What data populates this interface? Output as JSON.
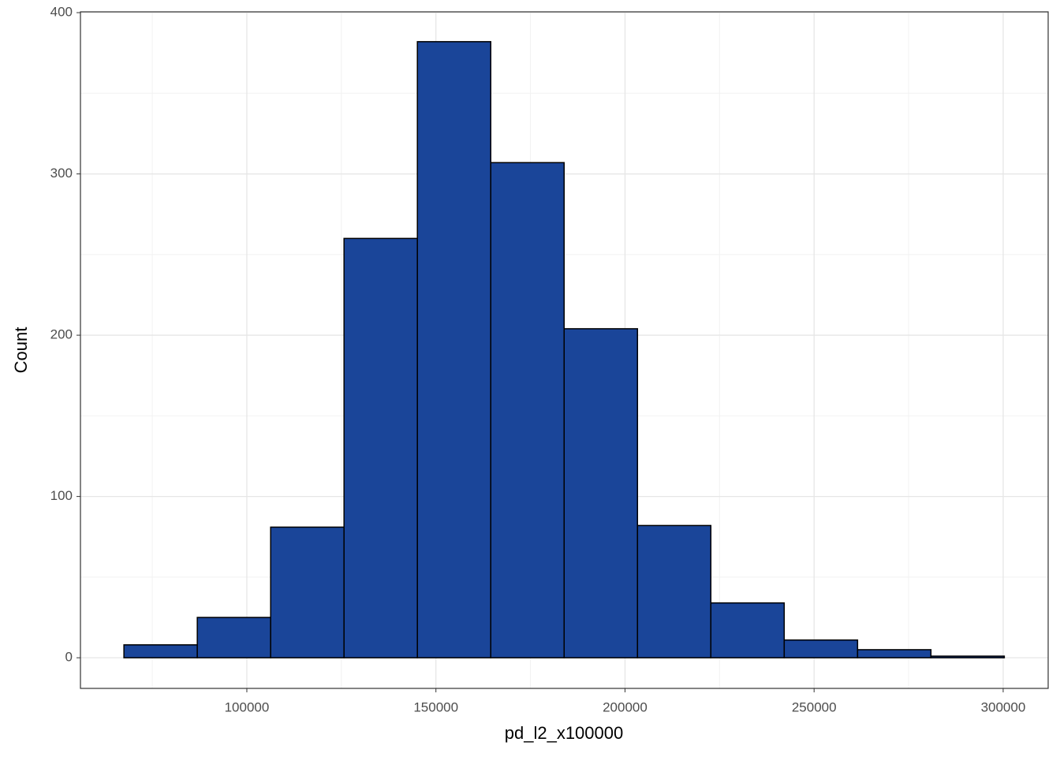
{
  "chart_data": {
    "type": "histogram",
    "x_label": "pd_l2_x100000",
    "y_label": "Count",
    "bins": [
      67500,
      86900,
      106300,
      125700,
      145100,
      164500,
      183900,
      203300,
      222700,
      242100,
      261500,
      280900,
      300300
    ],
    "values": [
      8,
      25,
      81,
      260,
      382,
      307,
      204,
      82,
      34,
      11,
      5,
      1
    ],
    "color": "#1a4599",
    "edge_color": "#000000",
    "xlim": [
      56000,
      311900
    ],
    "xticks": [
      100000,
      150000,
      200000,
      250000,
      300000
    ],
    "ylim": [
      -19,
      400.5
    ],
    "yticks": [
      0,
      100,
      200,
      300,
      400
    ],
    "grid": true
  }
}
